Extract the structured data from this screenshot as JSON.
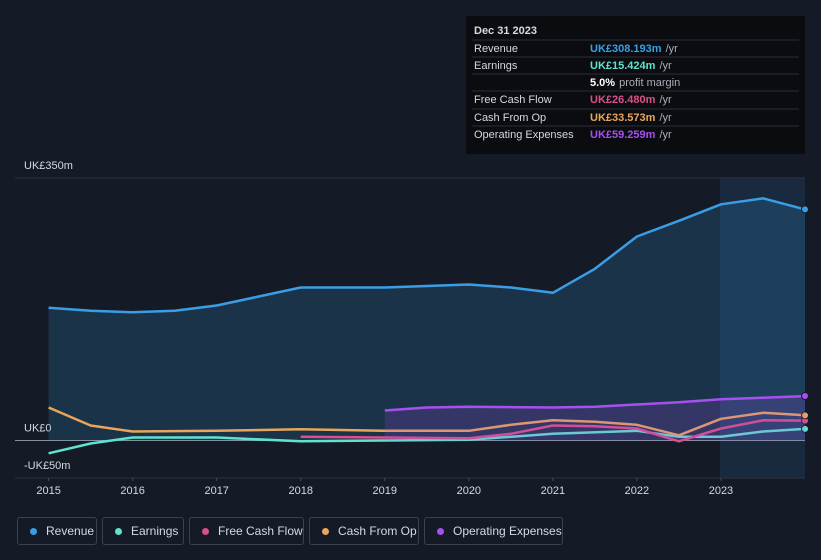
{
  "chart_data": {
    "type": "line",
    "xlim": [
      2014.6,
      2024
    ],
    "xticks": [
      2015,
      2016,
      2017,
      2018,
      2019,
      2020,
      2021,
      2022,
      2023
    ],
    "ylim": [
      -50,
      350
    ],
    "yticks": [
      {
        "value": 350,
        "label": "UK£350m"
      },
      {
        "value": 0,
        "label": "UK£0"
      },
      {
        "value": -50,
        "label": "-UK£50m"
      }
    ],
    "legend": "bottom",
    "series": [
      {
        "name": "Revenue",
        "color": "#3a9ee6",
        "area": true,
        "x": [
          2015,
          2015.5,
          2016,
          2016.5,
          2017,
          2017.5,
          2018,
          2018.5,
          2019,
          2019.5,
          2020,
          2020.5,
          2021,
          2021.5,
          2022,
          2022.5,
          2023,
          2023.5,
          2024
        ],
        "values": [
          177,
          173,
          171,
          173,
          180,
          192,
          204,
          204,
          204,
          206,
          208,
          204,
          197,
          229,
          272,
          293,
          315,
          323,
          308.193
        ]
      },
      {
        "name": "Earnings",
        "color": "#5fe3cf",
        "area": false,
        "x": [
          2015,
          2015.5,
          2016,
          2017,
          2018,
          2019,
          2020,
          2021,
          2022,
          2022.5,
          2023,
          2023.5,
          2024
        ],
        "values": [
          -17,
          -4,
          4,
          4,
          -1,
          0,
          1,
          9,
          13,
          5,
          5,
          12,
          15.424
        ]
      },
      {
        "name": "Free Cash Flow",
        "color": "#d9508c",
        "area": false,
        "x": [
          2018,
          2019,
          2020,
          2020.5,
          2021,
          2021.5,
          2022,
          2022.5,
          2023,
          2023.5,
          2024
        ],
        "values": [
          5,
          4,
          3,
          9,
          20,
          19,
          16,
          -1,
          16,
          27,
          26.48
        ]
      },
      {
        "name": "Cash From Op",
        "color": "#e8a65c",
        "area": false,
        "x": [
          2015,
          2015.5,
          2016,
          2017,
          2018,
          2019,
          2020,
          2020.5,
          2021,
          2021.5,
          2022,
          2022.5,
          2023,
          2023.5,
          2024
        ],
        "values": [
          44,
          20,
          12,
          13,
          15,
          13,
          13,
          21,
          27,
          25,
          21,
          7,
          29,
          37,
          33.573
        ]
      },
      {
        "name": "Operating Expenses",
        "color": "#a650ef",
        "area": true,
        "x": [
          2019,
          2019.5,
          2020,
          2021,
          2021.5,
          2022,
          2022.5,
          2023,
          2023.5,
          2024
        ],
        "values": [
          40,
          44,
          45,
          44,
          45,
          48,
          51,
          55,
          57,
          59.259
        ]
      }
    ]
  },
  "tooltip": {
    "date": "Dec 31 2023",
    "suffix": "/yr",
    "rows": [
      {
        "label": "Revenue",
        "value": "UK£308.193m",
        "color": "#3a9ee6"
      },
      {
        "label": "Earnings",
        "value": "UK£15.424m",
        "color": "#5fe3cf"
      },
      {
        "label": "Free Cash Flow",
        "value": "UK£26.480m",
        "color": "#d9508c"
      },
      {
        "label": "Cash From Op",
        "value": "UK£33.573m",
        "color": "#e8a65c"
      },
      {
        "label": "Operating Expenses",
        "value": "UK£59.259m",
        "color": "#a650ef"
      }
    ],
    "margin_value": "5.0%",
    "margin_label": "profit margin"
  }
}
